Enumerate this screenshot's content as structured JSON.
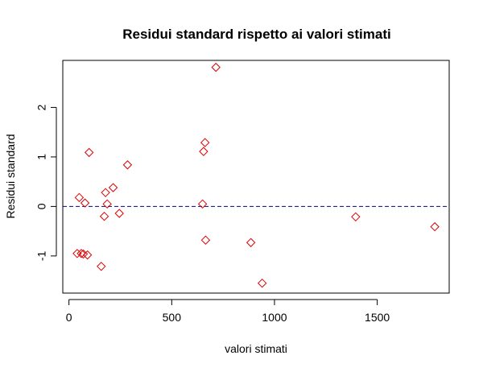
{
  "chart_data": {
    "type": "scatter",
    "title": "Residui standard rispetto ai valori stimati",
    "xlabel": "valori stimati",
    "ylabel": "Residui standard",
    "xlim": [
      -30,
      1850
    ],
    "ylim": [
      -1.75,
      2.95
    ],
    "x_ticks": [
      0,
      500,
      1000,
      1500
    ],
    "y_ticks": [
      -1,
      0,
      1,
      2
    ],
    "grid": false,
    "legend": "none",
    "marker": "diamond",
    "point_color": "#dd0000",
    "reference_line": {
      "y": 0,
      "style": "dashed",
      "color": "#00008b"
    },
    "points": [
      {
        "x": 40,
        "y": -0.95
      },
      {
        "x": 50,
        "y": 0.18
      },
      {
        "x": 60,
        "y": -0.95
      },
      {
        "x": 70,
        "y": -0.96
      },
      {
        "x": 78,
        "y": 0.07
      },
      {
        "x": 90,
        "y": -0.98
      },
      {
        "x": 98,
        "y": 1.09
      },
      {
        "x": 157,
        "y": -1.21
      },
      {
        "x": 172,
        "y": -0.2
      },
      {
        "x": 178,
        "y": 0.28
      },
      {
        "x": 186,
        "y": 0.05
      },
      {
        "x": 215,
        "y": 0.38
      },
      {
        "x": 245,
        "y": -0.14
      },
      {
        "x": 285,
        "y": 0.84
      },
      {
        "x": 650,
        "y": 0.05
      },
      {
        "x": 655,
        "y": 1.11
      },
      {
        "x": 662,
        "y": 1.29
      },
      {
        "x": 665,
        "y": -0.68
      },
      {
        "x": 715,
        "y": 2.81
      },
      {
        "x": 885,
        "y": -0.73
      },
      {
        "x": 940,
        "y": -1.55
      },
      {
        "x": 1395,
        "y": -0.21
      },
      {
        "x": 1780,
        "y": -0.41
      }
    ]
  }
}
